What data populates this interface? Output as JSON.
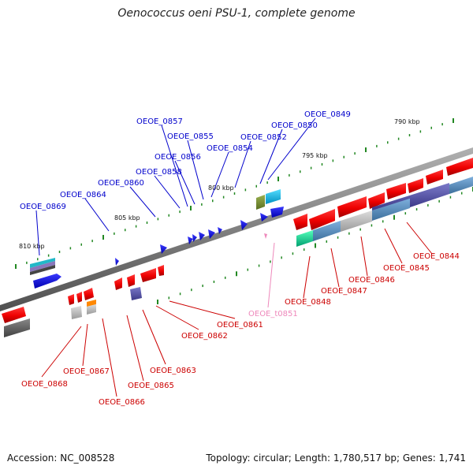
{
  "title": "Oenococcus oeni PSU-1, complete genome",
  "footer": {
    "accession": "Accession: NC_008528",
    "topology": "Topology: circular; Length: 1,780,517 bp; Genes: 1,741"
  },
  "colors": {
    "forward_label": "#0000cc",
    "reverse_label": "#cc0000",
    "rna_label": "#ee88bb",
    "backbone": "#777777",
    "tick": "#228822"
  },
  "scale_labels": [
    "790 kbp",
    "795 kbp",
    "800 kbp",
    "805 kbp",
    "810 kbp"
  ],
  "forward_genes": [
    "OEOE_0849",
    "OEOE_0850",
    "OEOE_0852",
    "OEOE_0854",
    "OEOE_0855",
    "OEOE_0856",
    "OEOE_0857",
    "OEOE_0858",
    "OEOE_0860",
    "OEOE_0864",
    "OEOE_0869"
  ],
  "reverse_genes": [
    "OEOE_0844",
    "OEOE_0845",
    "OEOE_0846",
    "OEOE_0847",
    "OEOE_0848",
    "OEOE_0861",
    "OEOE_0862",
    "OEOE_0863",
    "OEOE_0865",
    "OEOE_0866",
    "OEOE_0867",
    "OEOE_0868"
  ],
  "rna_genes": [
    "OEOE_t0851"
  ]
}
